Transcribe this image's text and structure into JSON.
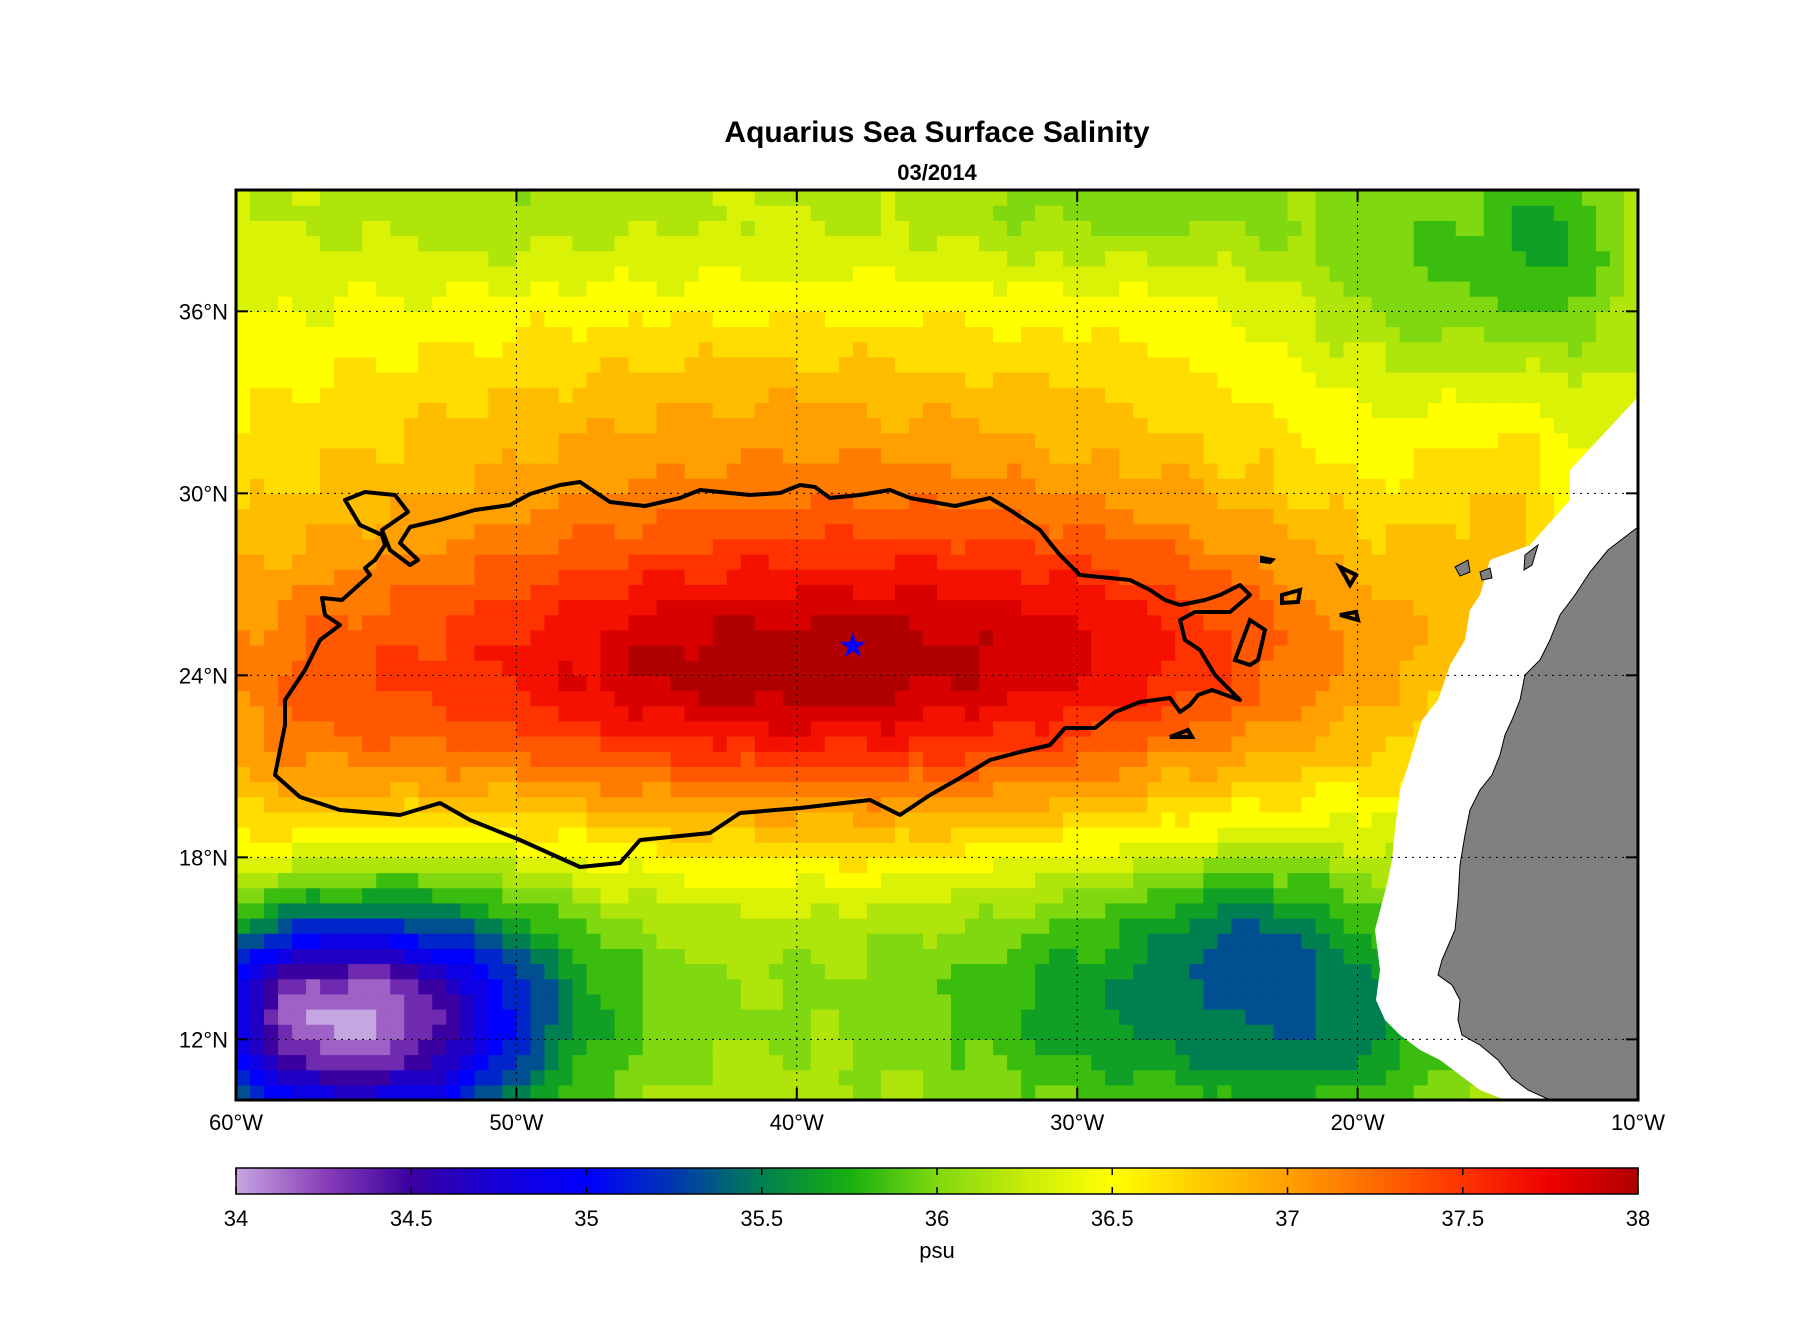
{
  "figure": {
    "title": "Aquarius Sea Surface Salinity",
    "subtitle": "03/2014"
  },
  "map": {
    "lon_range": [
      -60,
      -10
    ],
    "lat_range": [
      10,
      40
    ],
    "lon_ticks": [
      {
        "value": -60,
        "label": "60°W"
      },
      {
        "value": -50,
        "label": "50°W"
      },
      {
        "value": -40,
        "label": "40°W"
      },
      {
        "value": -30,
        "label": "30°W"
      },
      {
        "value": -20,
        "label": "20°W"
      },
      {
        "value": -10,
        "label": "10°W"
      }
    ],
    "lat_ticks": [
      {
        "value": 12,
        "label": "12°N"
      },
      {
        "value": 18,
        "label": "18°N"
      },
      {
        "value": 24,
        "label": "24°N"
      },
      {
        "value": 30,
        "label": "30°N"
      },
      {
        "value": 36,
        "label": "36°N"
      }
    ],
    "grid": "dotted",
    "land_color": "#808080",
    "marker": {
      "lon": -38,
      "lat": 25,
      "symbol": "star",
      "color": "#0000ff"
    }
  },
  "colorbar": {
    "min": 34,
    "max": 38,
    "label": "psu",
    "ticks": [
      {
        "value": 34,
        "label": "34"
      },
      {
        "value": 34.5,
        "label": "34.5"
      },
      {
        "value": 35,
        "label": "35"
      },
      {
        "value": 35.5,
        "label": "35.5"
      },
      {
        "value": 36,
        "label": "36"
      },
      {
        "value": 36.5,
        "label": "36.5"
      },
      {
        "value": 37,
        "label": "37"
      },
      {
        "value": 37.5,
        "label": "37.5"
      },
      {
        "value": 38,
        "label": "38"
      }
    ],
    "stops": [
      {
        "value": 34.0,
        "color": "#c6a6e0"
      },
      {
        "value": 34.25,
        "color": "#8a3fb8"
      },
      {
        "value": 34.5,
        "color": "#3a00a0"
      },
      {
        "value": 34.75,
        "color": "#1400d8"
      },
      {
        "value": 35.0,
        "color": "#0000ff"
      },
      {
        "value": 35.25,
        "color": "#0037b0"
      },
      {
        "value": 35.5,
        "color": "#008050"
      },
      {
        "value": 35.75,
        "color": "#18b010"
      },
      {
        "value": 36.0,
        "color": "#80d810"
      },
      {
        "value": 36.25,
        "color": "#c8ec08"
      },
      {
        "value": 36.5,
        "color": "#ffff00"
      },
      {
        "value": 36.75,
        "color": "#ffcc00"
      },
      {
        "value": 37.0,
        "color": "#ffa000"
      },
      {
        "value": 37.25,
        "color": "#ff6a00"
      },
      {
        "value": 37.5,
        "color": "#ff3300"
      },
      {
        "value": 37.75,
        "color": "#ee0000"
      },
      {
        "value": 38.0,
        "color": "#b00000"
      }
    ]
  },
  "salinity_field": {
    "background": 36.3,
    "features": [
      {
        "lon": -40,
        "lat": 24.5,
        "rlon": 20,
        "rlat": 6.5,
        "amp": 1.4
      },
      {
        "lon": -44,
        "lat": 24,
        "rlon": 9,
        "rlat": 3,
        "amp": 0.3
      },
      {
        "lon": -28,
        "lat": 25,
        "rlon": 10,
        "rlat": 4,
        "amp": 0.4
      },
      {
        "lon": -58,
        "lat": 22,
        "rlon": 6,
        "rlat": 6,
        "amp": 0.35
      },
      {
        "lon": -40,
        "lat": 33,
        "rlon": 22,
        "rlat": 4,
        "amp": 0.35
      },
      {
        "lon": -55,
        "lat": 12.5,
        "rlon": 6,
        "rlat": 4,
        "amp": -1.9
      },
      {
        "lon": -58.5,
        "lat": 13,
        "rlon": 3,
        "rlat": 3,
        "amp": -0.5
      },
      {
        "lon": -52,
        "lat": 15,
        "rlon": 12,
        "rlat": 5,
        "amp": -0.3
      },
      {
        "lon": -25,
        "lat": 13.5,
        "rlon": 10,
        "rlat": 5,
        "amp": -0.75
      },
      {
        "lon": -21,
        "lat": 12.5,
        "rlon": 4,
        "rlat": 3,
        "amp": -0.25
      },
      {
        "lon": -24,
        "lat": 16,
        "rlon": 3,
        "rlat": 2,
        "amp": -0.3
      },
      {
        "lon": -38,
        "lat": 15,
        "rlon": 14,
        "rlat": 5,
        "amp": -0.15
      },
      {
        "lon": -16,
        "lat": 37,
        "rlon": 6,
        "rlat": 5,
        "amp": -0.45
      },
      {
        "lon": -29,
        "lat": 39.5,
        "rlon": 8,
        "rlat": 2,
        "amp": -0.3
      },
      {
        "lon": -13,
        "lat": 38.5,
        "rlon": 2,
        "rlat": 3,
        "amp": -0.3
      },
      {
        "lon": -50,
        "lat": 39.5,
        "rlon": 8,
        "rlat": 2,
        "amp": -0.2
      },
      {
        "lon": -15,
        "lat": 30,
        "rlon": 3,
        "rlat": 5,
        "amp": 0.3
      }
    ]
  }
}
